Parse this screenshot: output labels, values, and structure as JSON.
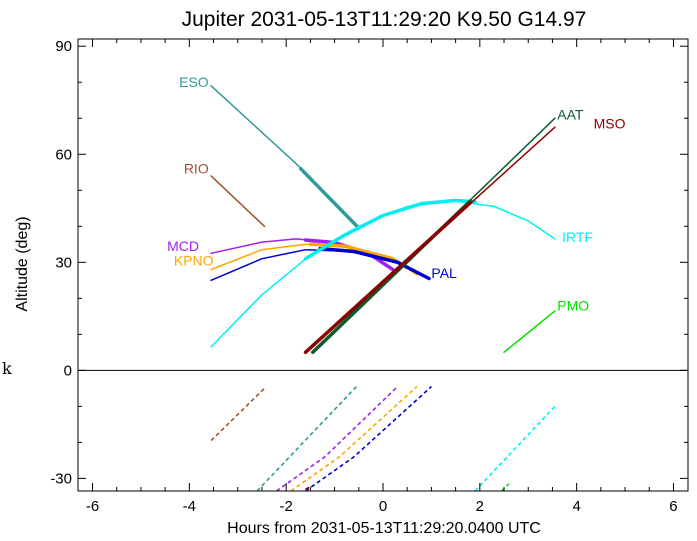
{
  "chart_data": {
    "type": "line",
    "title": "Jupiter 2031-05-13T11:29:20  K9.50  G14.97",
    "xlabel": "Hours from 2031-05-13T11:29:20.0400 UTC",
    "ylabel": "Altitude (deg)",
    "side_text": "k",
    "xlim": [
      -6.3,
      6.3
    ],
    "ylim": [
      -33.5,
      92
    ],
    "xticks": [
      -6,
      -4,
      -2,
      0,
      2,
      4,
      6
    ],
    "yticks": [
      90,
      60,
      30,
      0,
      -30
    ],
    "zero_line": true,
    "series": [
      {
        "name": "ESO",
        "color": "#2e9b98",
        "label_pos": [
          -3.6,
          80
        ],
        "label_anchor": "end",
        "points": [
          [
            -3.55,
            79
          ],
          [
            -1.6,
            55
          ],
          [
            -0.55,
            40
          ]
        ],
        "thick": [
          [
            -1.7,
            56
          ],
          [
            -0.5,
            39.5
          ]
        ],
        "below": [
          [
            -2.6,
            -33.5
          ],
          [
            -0.55,
            -4.5
          ]
        ]
      },
      {
        "name": "RIO",
        "color": "#a0522d",
        "label_pos": [
          -3.6,
          56
        ],
        "label_anchor": "end",
        "points": [
          [
            -3.55,
            54
          ],
          [
            -2.45,
            40
          ]
        ],
        "thick": [],
        "below": [
          [
            -3.55,
            -19.5
          ],
          [
            -2.45,
            -5
          ]
        ]
      },
      {
        "name": "MCD",
        "color": "#a020f0",
        "label_pos": [
          -3.8,
          34.5
        ],
        "label_anchor": "end",
        "points": [
          [
            -3.55,
            32.5
          ],
          [
            -2.5,
            35.6
          ],
          [
            -1.8,
            36.5
          ],
          [
            -1.0,
            35.5
          ],
          [
            -0.3,
            32.5
          ],
          [
            0.2,
            28
          ]
        ],
        "thick": [
          [
            -1.6,
            36.2
          ],
          [
            -1.0,
            35.5
          ],
          [
            -0.3,
            32.5
          ],
          [
            0.2,
            28
          ]
        ],
        "below": [
          [
            -2.2,
            -33.5
          ],
          [
            -1.2,
            -24
          ],
          [
            0.3,
            -4.5
          ]
        ]
      },
      {
        "name": "KPNO",
        "color": "#ffa500",
        "label_pos": [
          -3.5,
          30.5
        ],
        "label_anchor": "end",
        "points": [
          [
            -3.55,
            28
          ],
          [
            -2.5,
            33.5
          ],
          [
            -1.6,
            35
          ],
          [
            -0.8,
            34.5
          ],
          [
            0.2,
            31
          ],
          [
            0.7,
            26.5
          ]
        ],
        "thick": [
          [
            -1.5,
            35
          ],
          [
            -0.8,
            34.5
          ],
          [
            0.2,
            31
          ],
          [
            0.5,
            28.5
          ]
        ],
        "below": [
          [
            -1.9,
            -33.5
          ],
          [
            -0.9,
            -24
          ],
          [
            0.7,
            -4.5
          ]
        ]
      },
      {
        "name": "PAL",
        "color": "#0000d0",
        "label_pos": [
          1.0,
          27
        ],
        "label_anchor": "start",
        "points": [
          [
            -3.55,
            25
          ],
          [
            -2.5,
            31
          ],
          [
            -1.6,
            33.5
          ],
          [
            -0.6,
            33
          ],
          [
            0.3,
            30
          ],
          [
            0.95,
            25.5
          ]
        ],
        "thick": [
          [
            -1.3,
            33.8
          ],
          [
            -0.6,
            33
          ],
          [
            0.3,
            30
          ],
          [
            0.95,
            25.5
          ]
        ],
        "below": [
          [
            -1.6,
            -33.5
          ],
          [
            -0.6,
            -24
          ],
          [
            1.0,
            -4.5
          ]
        ]
      },
      {
        "name": "IRTF",
        "color": "#00f0f0",
        "label_pos": [
          3.7,
          37
        ],
        "label_anchor": "start",
        "points": [
          [
            -3.55,
            6.5
          ],
          [
            -2.5,
            21
          ],
          [
            -1.5,
            32
          ],
          [
            -0.5,
            40
          ],
          [
            0.5,
            45.5
          ],
          [
            1.4,
            47.2
          ],
          [
            2.3,
            45.5
          ],
          [
            3.0,
            41.5
          ],
          [
            3.55,
            36.5
          ]
        ],
        "thick": [
          [
            -1.6,
            31
          ],
          [
            -0.8,
            37.5
          ],
          [
            0.0,
            43
          ],
          [
            0.8,
            46.3
          ],
          [
            1.5,
            47.2
          ],
          [
            1.9,
            46.8
          ]
        ],
        "below": [
          [
            1.9,
            -33.5
          ],
          [
            3.55,
            -10
          ]
        ]
      },
      {
        "name": "AAT",
        "color": "#0a5c2e",
        "label_pos": [
          3.6,
          71
        ],
        "label_anchor": "start",
        "points": [
          [
            -1.45,
            5
          ],
          [
            3.55,
            70
          ]
        ],
        "thick": [
          [
            -1.45,
            5
          ],
          [
            1.8,
            47
          ]
        ],
        "below": []
      },
      {
        "name": "MSO",
        "color": "#8b0000",
        "label_pos": [
          4.35,
          68.5
        ],
        "label_anchor": "start",
        "points": [
          [
            -1.6,
            5
          ],
          [
            3.55,
            67.5
          ]
        ],
        "thick": [
          [
            -1.6,
            5
          ],
          [
            1.8,
            46.5
          ]
        ],
        "below": [
          [
            -1.6,
            -33
          ],
          [
            -1.5,
            -32.3
          ]
        ]
      },
      {
        "name": "PMO",
        "color": "#00e000",
        "label_pos": [
          3.6,
          18
        ],
        "label_anchor": "start",
        "points": [
          [
            2.5,
            5
          ],
          [
            3.55,
            16.5
          ]
        ],
        "thick": [],
        "below": [
          [
            2.45,
            -33.5
          ],
          [
            2.6,
            -31.5
          ]
        ]
      }
    ]
  }
}
